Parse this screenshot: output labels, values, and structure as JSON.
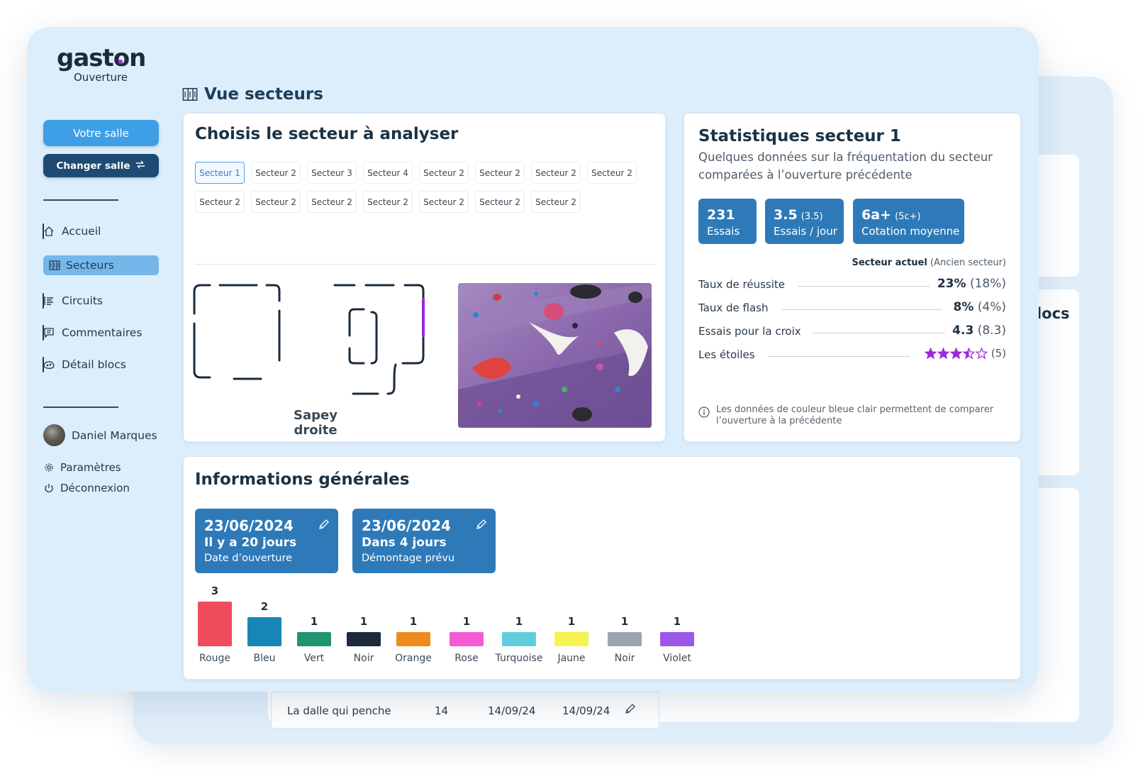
{
  "app": {
    "logo": "gaston",
    "logo_sub": "Ouverture"
  },
  "sidebar": {
    "primary_button": "Votre salle",
    "secondary_button": "Changer salle",
    "nav": [
      {
        "label": "Accueil",
        "icon": "home-icon",
        "active": false
      },
      {
        "label": "Secteurs",
        "icon": "sectors-icon",
        "active": true
      },
      {
        "label": "Circuits",
        "icon": "list-icon",
        "active": false
      },
      {
        "label": "Commentaires",
        "icon": "comment-icon",
        "active": false
      },
      {
        "label": "Détail blocs",
        "icon": "holds-icon",
        "active": false
      }
    ],
    "user_name": "Daniel Marques",
    "settings": "Paramètres",
    "logout": "Déconnexion"
  },
  "page": {
    "title": "Vue secteurs"
  },
  "sector_picker": {
    "title": "Choisis le secteur à analyser",
    "chips": [
      "Secteur 1",
      "Secteur 2",
      "Secteur 3",
      "Secteur 4",
      "Secteur 2",
      "Secteur 2",
      "Secteur 2",
      "Secteur 2",
      "Secteur 2",
      "Secteur 2",
      "Secteur 2",
      "Secteur 2",
      "Secteur 2",
      "Secteur 2",
      "Secteur 2"
    ],
    "map_caption": "Sapey droite"
  },
  "stats": {
    "title": "Statistiques secteur 1",
    "subtitle_line1": "Quelques données sur la fréquentation du secteur",
    "subtitle_line2": "comparées à l’ouverture précédente",
    "boxes": [
      {
        "value": "231",
        "extra": "",
        "label": "Essais"
      },
      {
        "value": "3.5",
        "extra": "(3.5)",
        "label": "Essais / jour"
      },
      {
        "value": "6a+",
        "extra": "(5c+)",
        "label": "Cotation moyenne"
      }
    ],
    "legend_current": "Secteur actuel",
    "legend_previous": "(Ancien secteur)",
    "rows": [
      {
        "label": "Taux de réussite",
        "current": "23%",
        "previous": "(18%)"
      },
      {
        "label": "Taux de flash",
        "current": "8%",
        "previous": "(4%)"
      },
      {
        "label": "Essais pour la croix",
        "current": "4.3",
        "previous": "(8.3)"
      },
      {
        "label": "Les étoiles",
        "current": "",
        "previous": "(5)"
      }
    ],
    "stars_rating": 3.5,
    "stars_max": 5,
    "note_line1": "Les données de couleur bleue clair permettent de comparer",
    "note_line2": "l’ouverture à la précédente"
  },
  "general_info": {
    "title": "Informations générales",
    "opening": {
      "date": "23/06/2024",
      "relative": "Il y a 20 jours",
      "label": "Date d’ouverture"
    },
    "removal": {
      "date": "23/06/2024",
      "relative": "Dans 4 jours",
      "label": "Démontage prévu"
    }
  },
  "chart_data": {
    "type": "bar",
    "categories": [
      "Rouge",
      "Bleu",
      "Vert",
      "Noir",
      "Orange",
      "Rose",
      "Turquoise",
      "Jaune",
      "Noir",
      "Violet"
    ],
    "values": [
      3,
      2,
      1,
      1,
      1,
      1,
      1,
      1,
      1,
      1
    ],
    "colors": [
      "#ef4b5d",
      "#1786b5",
      "#1f9470",
      "#1b2b3c",
      "#ef8a1f",
      "#f45bd3",
      "#63cde0",
      "#f4f34f",
      "#9aa4b0",
      "#9b57e8"
    ],
    "ylim": [
      0,
      3
    ]
  },
  "background_window": {
    "blocs_fragment": ") blocs",
    "row": {
      "name": "La dalle qui penche",
      "count": "14",
      "date1": "14/09/24",
      "date2": "14/09/24"
    }
  }
}
